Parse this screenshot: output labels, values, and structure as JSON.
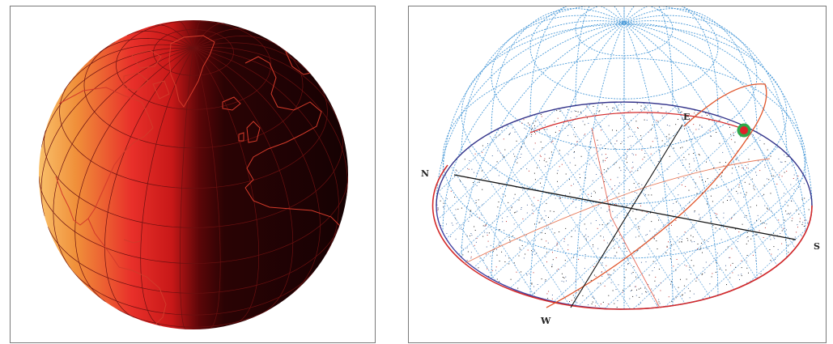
{
  "left_panel": {
    "colors": {
      "day": "#f9c06a",
      "mid": "#e8302a",
      "terminator": "#5a0608",
      "night": "#150203",
      "coast": "#d23a2a",
      "grid": "#6b1010"
    }
  },
  "right_panel": {
    "labels": {
      "north": "N",
      "east": "E",
      "south": "S",
      "west": "W"
    },
    "colors": {
      "dome_grid": "#4a9ad8",
      "horizon": "#d42a2a",
      "horizon_back": "#33338a",
      "axis": "#111111",
      "sun_path": "#e0542a",
      "sun_outer": "#2fa84a",
      "sun_inner": "#e0202a"
    }
  }
}
